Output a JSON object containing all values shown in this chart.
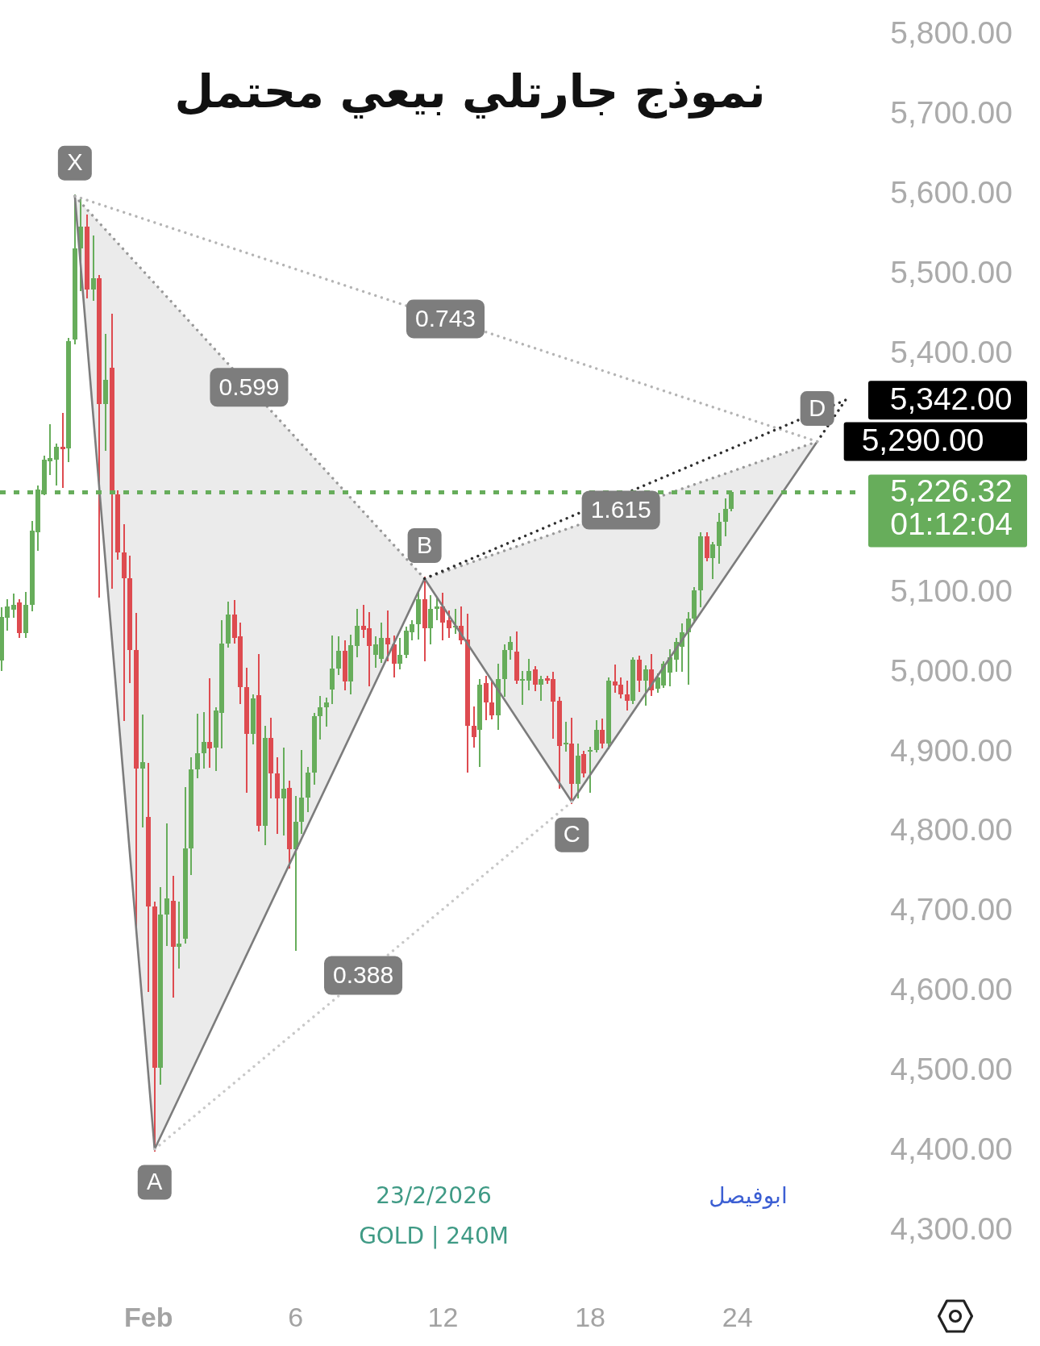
{
  "chart_data": {
    "type": "candlestick",
    "title": "نموذج جارتلي بيعي محتمل",
    "x": [
      -6,
      -5.75,
      -5.5,
      -5.25,
      -5,
      -4.75,
      -4.5,
      -4.25,
      -4,
      -3.75,
      -3.5,
      -3.25,
      -3,
      -2.75,
      -2.5,
      -2.25,
      -2,
      -1.75,
      -1.5,
      -1.25,
      -1,
      -0.75,
      -0.5,
      -0.25,
      0,
      0.25,
      0.5,
      0.75,
      1,
      1.25,
      1.5,
      1.75,
      2,
      2.25,
      2.5,
      2.75,
      3,
      3.25,
      3.5,
      3.75,
      4,
      4.25,
      4.5,
      4.75,
      5,
      5.25,
      5.5,
      5.75,
      6,
      6.25,
      6.5,
      6.75,
      7,
      7.25,
      7.5,
      7.75,
      8,
      8.25,
      8.5,
      8.75,
      9,
      9.25,
      9.5,
      9.75,
      10,
      10.25,
      10.5,
      10.75,
      11,
      11.25,
      11.5,
      11.75,
      12,
      12.25,
      12.5,
      12.75,
      13,
      13.25,
      13.5,
      13.75,
      14,
      14.25,
      14.5,
      14.75,
      15,
      15.25,
      15.5,
      15.75,
      16,
      16.25,
      16.5,
      16.75,
      17,
      17.25,
      17.5,
      17.75,
      18,
      18.25,
      18.5,
      18.75,
      19,
      19.25,
      19.5,
      19.75,
      20,
      20.25,
      20.5,
      20.75,
      21,
      21.25,
      21.5,
      21.75,
      22,
      22.25,
      22.5,
      22.75,
      23,
      23.25,
      23.5,
      23.75
    ],
    "ohlc": [
      [
        5015,
        5080,
        5005,
        5070
      ],
      [
        5069,
        5090,
        5055,
        5083
      ],
      [
        5079,
        5097,
        5071,
        5085
      ],
      [
        5088,
        5090,
        5046,
        5050
      ],
      [
        5050,
        5099,
        5046,
        5085
      ],
      [
        5085,
        5188,
        5080,
        5178
      ],
      [
        5176,
        5232,
        5155,
        5230
      ],
      [
        5227,
        5270,
        5225,
        5267
      ],
      [
        5265,
        5309,
        5251,
        5269
      ],
      [
        5267,
        5285,
        5237,
        5283
      ],
      [
        5283,
        5323,
        5234,
        5280
      ],
      [
        5281,
        5418,
        5267,
        5416
      ],
      [
        5418,
        5598,
        5415,
        5532
      ],
      [
        5532,
        5593,
        5481,
        5560
      ],
      [
        5560,
        5572,
        5472,
        5481
      ],
      [
        5481,
        5546,
        5469,
        5495
      ],
      [
        5495,
        5497,
        5097,
        5337
      ],
      [
        5337,
        5423,
        5281,
        5367
      ],
      [
        5383,
        5448,
        5108,
        5224
      ],
      [
        5224,
        5226,
        5144,
        5151
      ],
      [
        5151,
        5184,
        4942,
        5119
      ],
      [
        5119,
        5144,
        4989,
        5028
      ],
      [
        5028,
        5072,
        4681,
        4880
      ],
      [
        4880,
        4945,
        4808,
        4888
      ],
      [
        4819,
        4884,
        4602,
        4707
      ],
      [
        4707,
        4710,
        4402,
        4504
      ],
      [
        4504,
        4728,
        4486,
        4696
      ],
      [
        4696,
        4808,
        4660,
        4717
      ],
      [
        4714,
        4743,
        4595,
        4656
      ],
      [
        4656,
        4710,
        4631,
        4660
      ],
      [
        4666,
        4854,
        4663,
        4779
      ],
      [
        4779,
        4891,
        4749,
        4879
      ],
      [
        4879,
        4946,
        4870,
        4899
      ],
      [
        4899,
        4948,
        4882,
        4913
      ],
      [
        4913,
        4990,
        4883,
        4905
      ],
      [
        4906,
        4954,
        4879,
        4953
      ],
      [
        4950,
        5063,
        4908,
        5037
      ],
      [
        5037,
        5087,
        5034,
        5073
      ],
      [
        5073,
        5089,
        5039,
        5044
      ],
      [
        5046,
        5060,
        4963,
        4982
      ],
      [
        4982,
        5004,
        4852,
        4923
      ],
      [
        4923,
        4970,
        4913,
        4968
      ],
      [
        4972,
        5021,
        4803,
        4808
      ],
      [
        4808,
        4931,
        4786,
        4918
      ],
      [
        4918,
        4941,
        4845,
        4874
      ],
      [
        4874,
        4891,
        4800,
        4842
      ],
      [
        4842,
        4903,
        4798,
        4854
      ],
      [
        4855,
        4862,
        4757,
        4778
      ],
      [
        4778,
        4843,
        4653,
        4813
      ],
      [
        4813,
        4900,
        4800,
        4843
      ],
      [
        4843,
        4879,
        4828,
        4875
      ],
      [
        4875,
        4947,
        4862,
        4945
      ],
      [
        4945,
        4968,
        4919,
        4957
      ],
      [
        4957,
        4966,
        4935,
        4963
      ],
      [
        4979,
        5044,
        4963,
        5005
      ],
      [
        5005,
        5043,
        5000,
        5027
      ],
      [
        5027,
        5038,
        4980,
        4989
      ],
      [
        4989,
        5045,
        4975,
        5035
      ],
      [
        5034,
        5078,
        5022,
        5059
      ],
      [
        5059,
        5083,
        5046,
        5054
      ],
      [
        5056,
        5073,
        4985,
        5034
      ],
      [
        5022,
        5043,
        5009,
        5036
      ],
      [
        5017,
        5060,
        5015,
        5044
      ],
      [
        5044,
        5075,
        5017,
        5036
      ],
      [
        5036,
        5044,
        4997,
        5011
      ],
      [
        5011,
        5041,
        5007,
        5022
      ],
      [
        5022,
        5055,
        5021,
        5053
      ],
      [
        5051,
        5063,
        5043,
        5061
      ],
      [
        5061,
        5100,
        5044,
        5092
      ],
      [
        5092,
        5118,
        5017,
        5056
      ],
      [
        5056,
        5095,
        5038,
        5080
      ],
      [
        5080,
        5092,
        5068,
        5083
      ],
      [
        5083,
        5098,
        5043,
        5063
      ],
      [
        5066,
        5075,
        5046,
        5056
      ],
      [
        5057,
        5078,
        5051,
        5059
      ],
      [
        5059,
        5081,
        5038,
        5041
      ],
      [
        5042,
        5071,
        4877,
        4933
      ],
      [
        4933,
        4955,
        4909,
        4919
      ],
      [
        4928,
        4989,
        4884,
        4985
      ],
      [
        4987,
        4994,
        4943,
        4963
      ],
      [
        4963,
        4987,
        4944,
        4946
      ],
      [
        4946,
        5009,
        4931,
        4992
      ],
      [
        4992,
        5033,
        4972,
        5028
      ],
      [
        5028,
        5043,
        5019,
        5039
      ],
      [
        5026,
        5049,
        4988,
        4990
      ],
      [
        4990,
        5000,
        4962,
        4992
      ],
      [
        4990,
        5015,
        4980,
        5002
      ],
      [
        5004,
        5006,
        4979,
        4985
      ],
      [
        4985,
        4994,
        4967,
        4992
      ],
      [
        4993,
        4994,
        4988,
        4990
      ],
      [
        4992,
        4999,
        4920,
        4964
      ],
      [
        4965,
        4967,
        4857,
        4908
      ],
      [
        4911,
        4936,
        4903,
        4912
      ],
      [
        4911,
        4941,
        4838,
        4860
      ],
      [
        4860,
        4909,
        4845,
        4896
      ],
      [
        4898,
        4899,
        4871,
        4874
      ],
      [
        4902,
        4904,
        4852,
        4903
      ],
      [
        4903,
        4938,
        4902,
        4928
      ],
      [
        4928,
        4940,
        4908,
        4911
      ],
      [
        4911,
        4991,
        4906,
        4990
      ],
      [
        4989,
        5008,
        4977,
        4984
      ],
      [
        4985,
        4992,
        4970,
        4973
      ],
      [
        4973,
        4987,
        4955,
        4965
      ],
      [
        4965,
        5017,
        4963,
        5016
      ],
      [
        5016,
        5019,
        4978,
        4990
      ],
      [
        4990,
        5007,
        4961,
        5004
      ],
      [
        5004,
        5021,
        4973,
        4978
      ],
      [
        4980,
        4997,
        4977,
        4994
      ],
      [
        4984,
        5012,
        4983,
        5011
      ],
      [
        5000,
        5027,
        4985,
        5019
      ],
      [
        5016,
        5041,
        5004,
        5039
      ],
      [
        5032,
        5059,
        5004,
        5051
      ],
      [
        5051,
        5073,
        4987,
        5068
      ],
      [
        5068,
        5105,
        5066,
        5103
      ],
      [
        5103,
        5174,
        5085,
        5171
      ],
      [
        5171,
        5174,
        5142,
        5144
      ],
      [
        5144,
        5162,
        5120,
        5161
      ],
      [
        5159,
        5198,
        5139,
        5189
      ],
      [
        5189,
        5216,
        5174,
        5206
      ],
      [
        5206,
        5227,
        5205,
        5226.32
      ]
    ],
    "colors": [
      "#67ad5b",
      "#67ad5b",
      "#67ad5b",
      "#de4b50",
      "#67ad5b",
      "#67ad5b",
      "#67ad5b",
      "#67ad5b",
      "#67ad5b",
      "#67ad5b",
      "#de4b50",
      "#67ad5b",
      "#67ad5b",
      "#67ad5b",
      "#de4b50",
      "#67ad5b",
      "#de4b50",
      "#67ad5b",
      "#de4b50",
      "#de4b50",
      "#de4b50",
      "#de4b50",
      "#de4b50",
      "#67ad5b",
      "#de4b50",
      "#de4b50",
      "#67ad5b",
      "#67ad5b",
      "#de4b50",
      "#67ad5b",
      "#67ad5b",
      "#67ad5b",
      "#67ad5b",
      "#67ad5b",
      "#de4b50",
      "#67ad5b",
      "#67ad5b",
      "#67ad5b",
      "#de4b50",
      "#de4b50",
      "#de4b50",
      "#67ad5b",
      "#de4b50",
      "#67ad5b",
      "#de4b50",
      "#de4b50",
      "#67ad5b",
      "#de4b50",
      "#67ad5b",
      "#67ad5b",
      "#67ad5b",
      "#67ad5b",
      "#67ad5b",
      "#67ad5b",
      "#67ad5b",
      "#67ad5b",
      "#de4b50",
      "#67ad5b",
      "#67ad5b",
      "#de4b50",
      "#de4b50",
      "#67ad5b",
      "#67ad5b",
      "#de4b50",
      "#de4b50",
      "#67ad5b",
      "#67ad5b",
      "#67ad5b",
      "#67ad5b",
      "#de4b50",
      "#67ad5b",
      "#67ad5b",
      "#de4b50",
      "#de4b50",
      "#67ad5b",
      "#de4b50",
      "#de4b50",
      "#de4b50",
      "#67ad5b",
      "#de4b50",
      "#de4b50",
      "#67ad5b",
      "#67ad5b",
      "#67ad5b",
      "#de4b50",
      "#67ad5b",
      "#67ad5b",
      "#de4b50",
      "#67ad5b",
      "#de4b50",
      "#de4b50",
      "#de4b50",
      "#67ad5b",
      "#de4b50",
      "#67ad5b",
      "#de4b50",
      "#67ad5b",
      "#67ad5b",
      "#de4b50",
      "#67ad5b",
      "#de4b50",
      "#de4b50",
      "#de4b50",
      "#67ad5b",
      "#de4b50",
      "#67ad5b",
      "#de4b50",
      "#67ad5b",
      "#67ad5b",
      "#67ad5b",
      "#67ad5b",
      "#67ad5b",
      "#67ad5b",
      "#67ad5b",
      "#67ad5b",
      "#de4b50",
      "#67ad5b",
      "#67ad5b",
      "#67ad5b",
      "#67ad5b"
    ],
    "series": [
      {
        "type": "line",
        "color": "#7c7c7c",
        "line_style": "solid",
        "x": [
          -3,
          0.25,
          11.25,
          17.25,
          27.25
        ],
        "values": [
          5598,
          4402,
          5118,
          4838,
          5290
        ],
        "lower": [
          5598,
          4402,
          5118,
          4838,
          5290
        ],
        "upper": [
          5598,
          5488,
          5118,
          5183,
          5290
        ],
        "value_labels": [
          null,
          null,
          null,
          null,
          "5,290.00"
        ]
      },
      {
        "type": "line",
        "color": "#999999",
        "line_style": "dotted",
        "x": [
          -3,
          11.25,
          27.25
        ],
        "values": [
          5598,
          5118,
          5290
        ]
      },
      {
        "type": "line",
        "color": "#b4b4b4",
        "line_style": "dotted",
        "x": [
          -3,
          27.25
        ],
        "values": [
          5598,
          5290
        ]
      },
      {
        "type": "line",
        "color": "#c8c8c8",
        "line_style": "dotted",
        "x": [
          0.25,
          17.25
        ],
        "values": [
          4402,
          4838
        ]
      },
      {
        "type": "line",
        "color": "#2e2e2e",
        "line_style": "dotted",
        "x": [
          11.25,
          28.4,
          27.25
        ],
        "values": [
          5118,
          5342,
          5290
        ],
        "value_labels": [
          null,
          "5,342.00",
          null
        ]
      }
    ],
    "xlim": [
      -6.05,
      29.1
    ],
    "xticks": [
      {
        "value": 0,
        "label": "Feb"
      },
      6,
      12,
      18,
      24
    ],
    "ylim": [
      4300,
      5800
    ],
    "yticks": [
      {
        "value": 4300,
        "label": "4,300.00"
      },
      {
        "value": 4400,
        "label": "4,400.00"
      },
      {
        "value": 4500,
        "label": "4,500.00"
      },
      {
        "value": 4600,
        "label": "4,600.00"
      },
      {
        "value": 4700,
        "label": "4,700.00"
      },
      {
        "value": 4800,
        "label": "4,800.00"
      },
      {
        "value": 4900,
        "label": "4,900.00"
      },
      {
        "value": 5000,
        "label": "5,000.00"
      },
      {
        "value": 5100,
        "label": "5,100.00"
      },
      {
        "value": 5400,
        "label": "5,400.00"
      },
      {
        "value": 5500,
        "label": "5,500.00"
      },
      {
        "value": 5600,
        "label": "5,600.00"
      },
      {
        "value": 5700,
        "label": "5,700.00"
      },
      {
        "value": 5800,
        "label": "5,800.00"
      }
    ],
    "ref_lines": [
      {
        "axis": "y",
        "value": 5226.32,
        "label": "5,226.32\n01:12:04",
        "color": "#67ad5b",
        "line_style": "dashed"
      }
    ],
    "annotations": [
      {
        "text": "X",
        "x": -3,
        "y": 5598
      },
      {
        "text": "A",
        "x": 0.25,
        "y": 4402
      },
      {
        "text": "B",
        "x": 11.25,
        "y": 5118
      },
      {
        "text": "C",
        "x": 17.25,
        "y": 4838
      },
      {
        "text": "D",
        "x": 27.25,
        "y": 5290
      },
      {
        "text": "0.599",
        "x": 4.1,
        "y": 5358
      },
      {
        "text": "0.743",
        "x": 12.1,
        "y": 5444
      },
      {
        "text": "0.388",
        "x": 8.75,
        "y": 4620
      },
      {
        "text": "1.615",
        "x": 19.25,
        "y": 5204
      },
      "23/2/2026",
      "GOLD | 240M",
      "ابوفيصل"
    ]
  }
}
